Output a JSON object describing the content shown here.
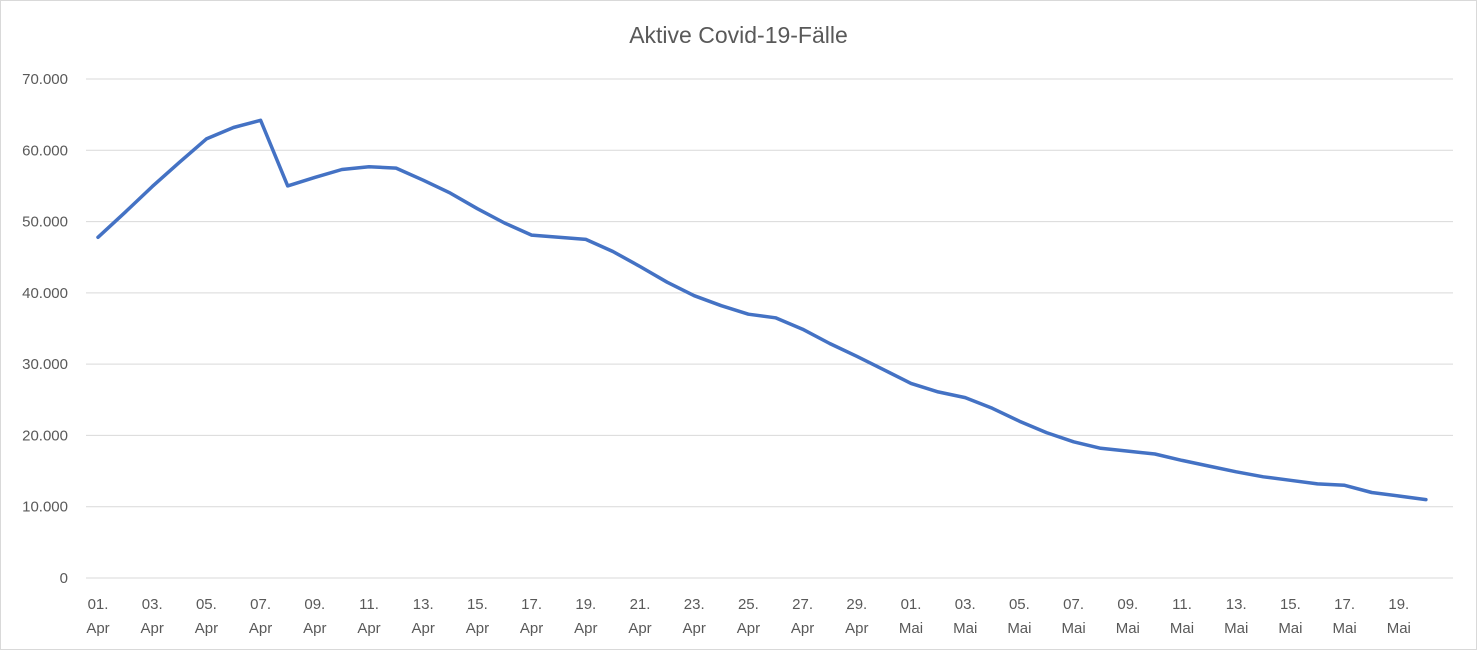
{
  "chart_data": {
    "type": "line",
    "title": "Aktive Covid-19-Fälle",
    "xlabel": "",
    "ylabel": "",
    "ylim": [
      0,
      70000
    ],
    "y_ticks": [
      0,
      10000,
      20000,
      30000,
      40000,
      50000,
      60000,
      70000
    ],
    "y_tick_labels": [
      "0",
      "10.000",
      "20.000",
      "30.000",
      "40.000",
      "50.000",
      "60.000",
      "70.000"
    ],
    "grid": true,
    "legend": "none",
    "line_color": "#4472c4",
    "x_tick_labels": [
      [
        "01.",
        "Apr"
      ],
      [
        "03.",
        "Apr"
      ],
      [
        "05.",
        "Apr"
      ],
      [
        "07.",
        "Apr"
      ],
      [
        "09.",
        "Apr"
      ],
      [
        "11.",
        "Apr"
      ],
      [
        "13.",
        "Apr"
      ],
      [
        "15.",
        "Apr"
      ],
      [
        "17.",
        "Apr"
      ],
      [
        "19.",
        "Apr"
      ],
      [
        "21.",
        "Apr"
      ],
      [
        "23.",
        "Apr"
      ],
      [
        "25.",
        "Apr"
      ],
      [
        "27.",
        "Apr"
      ],
      [
        "29.",
        "Apr"
      ],
      [
        "01.",
        "Mai"
      ],
      [
        "03.",
        "Mai"
      ],
      [
        "05.",
        "Mai"
      ],
      [
        "07.",
        "Mai"
      ],
      [
        "09.",
        "Mai"
      ],
      [
        "11.",
        "Mai"
      ],
      [
        "13.",
        "Mai"
      ],
      [
        "15.",
        "Mai"
      ],
      [
        "17.",
        "Mai"
      ],
      [
        "19.",
        "Mai"
      ]
    ],
    "x": [
      "01. Apr",
      "02. Apr",
      "03. Apr",
      "04. Apr",
      "05. Apr",
      "06. Apr",
      "07. Apr",
      "08. Apr",
      "09. Apr",
      "10. Apr",
      "11. Apr",
      "12. Apr",
      "13. Apr",
      "14. Apr",
      "15. Apr",
      "16. Apr",
      "17. Apr",
      "18. Apr",
      "19. Apr",
      "20. Apr",
      "21. Apr",
      "22. Apr",
      "23. Apr",
      "24. Apr",
      "25. Apr",
      "26. Apr",
      "27. Apr",
      "28. Apr",
      "29. Apr",
      "30. Apr",
      "01. Mai",
      "02. Mai",
      "03. Mai",
      "04. Mai",
      "05. Mai",
      "06. Mai",
      "07. Mai",
      "08. Mai",
      "09. Mai",
      "10. Mai",
      "11. Mai",
      "12. Mai",
      "13. Mai",
      "14. Mai",
      "15. Mai",
      "16. Mai",
      "17. Mai",
      "18. Mai",
      "19. Mai",
      "20. Mai"
    ],
    "series": [
      {
        "values": [
          47800,
          51300,
          54900,
          58300,
          61600,
          63200,
          64200,
          55000,
          56200,
          57300,
          57700,
          57500,
          55800,
          54000,
          51800,
          49800,
          48100,
          47800,
          47500,
          45800,
          43700,
          41500,
          39600,
          38200,
          37000,
          36500,
          34900,
          32900,
          31100,
          29200,
          27300,
          26100,
          25300,
          23800,
          22000,
          20400,
          19100,
          18200,
          17800,
          17400,
          16500,
          15700,
          14900,
          14200,
          13700,
          13200,
          13000,
          12000,
          11500,
          11000
        ]
      }
    ]
  }
}
